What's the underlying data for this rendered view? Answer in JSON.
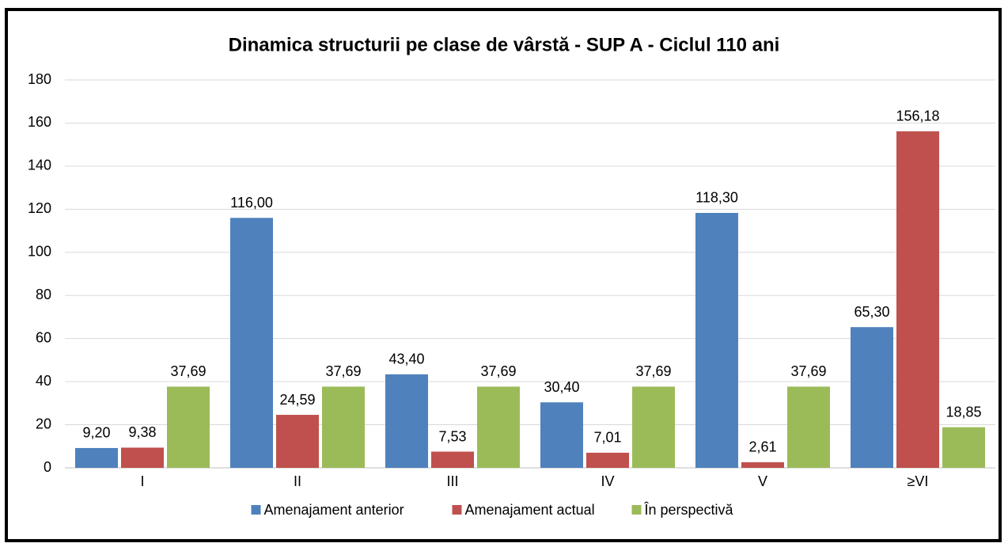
{
  "chart_data": {
    "type": "bar",
    "title": "Dinamica structurii pe clase de vârstă -  SUP A - Ciclul 110 ani",
    "categories": [
      "I",
      "II",
      "III",
      "IV",
      "V",
      "≥VI"
    ],
    "series": [
      {
        "name": "Amenajament anterior",
        "color": "#4f81bd",
        "values": [
          9.2,
          116.0,
          43.4,
          30.4,
          118.3,
          65.3
        ],
        "value_labels": [
          "9,20",
          "116,00",
          "43,40",
          "30,40",
          "118,30",
          "65,30"
        ]
      },
      {
        "name": "Amenajament actual",
        "color": "#c0504d",
        "values": [
          9.38,
          24.59,
          7.53,
          7.01,
          2.61,
          156.18
        ],
        "value_labels": [
          "9,38",
          "24,59",
          "7,53",
          "7,01",
          "2,61",
          "156,18"
        ]
      },
      {
        "name": "În perspectivă",
        "color": "#9bbb59",
        "values": [
          37.69,
          37.69,
          37.69,
          37.69,
          37.69,
          18.85
        ],
        "value_labels": [
          "37,69",
          "37,69",
          "37,69",
          "37,69",
          "37,69",
          "18,85"
        ]
      }
    ],
    "ylim": [
      0,
      180
    ],
    "yticks": [
      0,
      20,
      40,
      60,
      80,
      100,
      120,
      140,
      160,
      180
    ],
    "grid": true,
    "legend": "bottom"
  }
}
